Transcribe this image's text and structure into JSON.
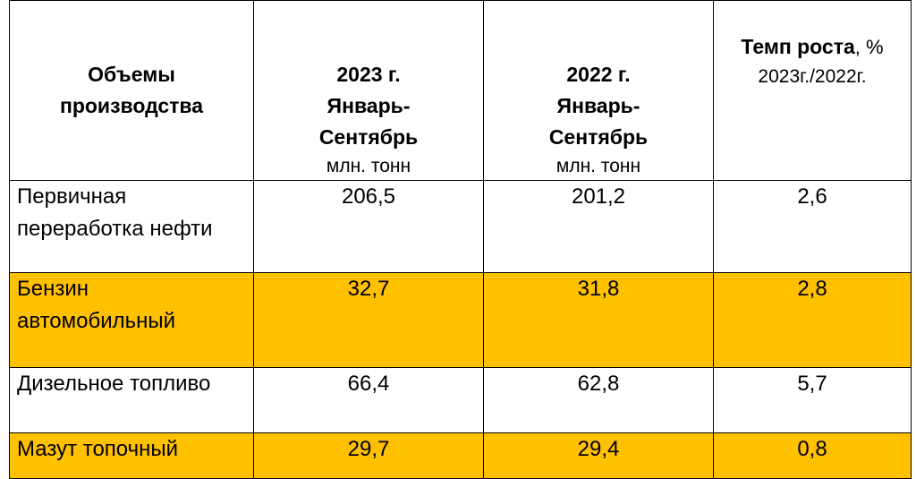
{
  "table": {
    "header": [
      {
        "bold": "Объемы производства"
      },
      {
        "bold": "2023 г. Январь-Сентябрь",
        "unit": "млн. тонн"
      },
      {
        "bold": "2022 г. Январь-Сентябрь",
        "unit": "млн. тонн"
      },
      {
        "bold": "Темп роста",
        "suffix": ", %",
        "unit": "2023г./2022г."
      }
    ],
    "rows": [
      [
        "Первичная переработка нефти",
        "206,5",
        "201,2",
        "2,6"
      ],
      [
        "Бензин автомобильный",
        "32,7",
        "31,8",
        "2,8"
      ],
      [
        "Дизельное топливо",
        "66,4",
        "62,8",
        "5,7"
      ],
      [
        "Мазут топочный",
        "29,7",
        "29,4",
        "0,8"
      ]
    ]
  }
}
